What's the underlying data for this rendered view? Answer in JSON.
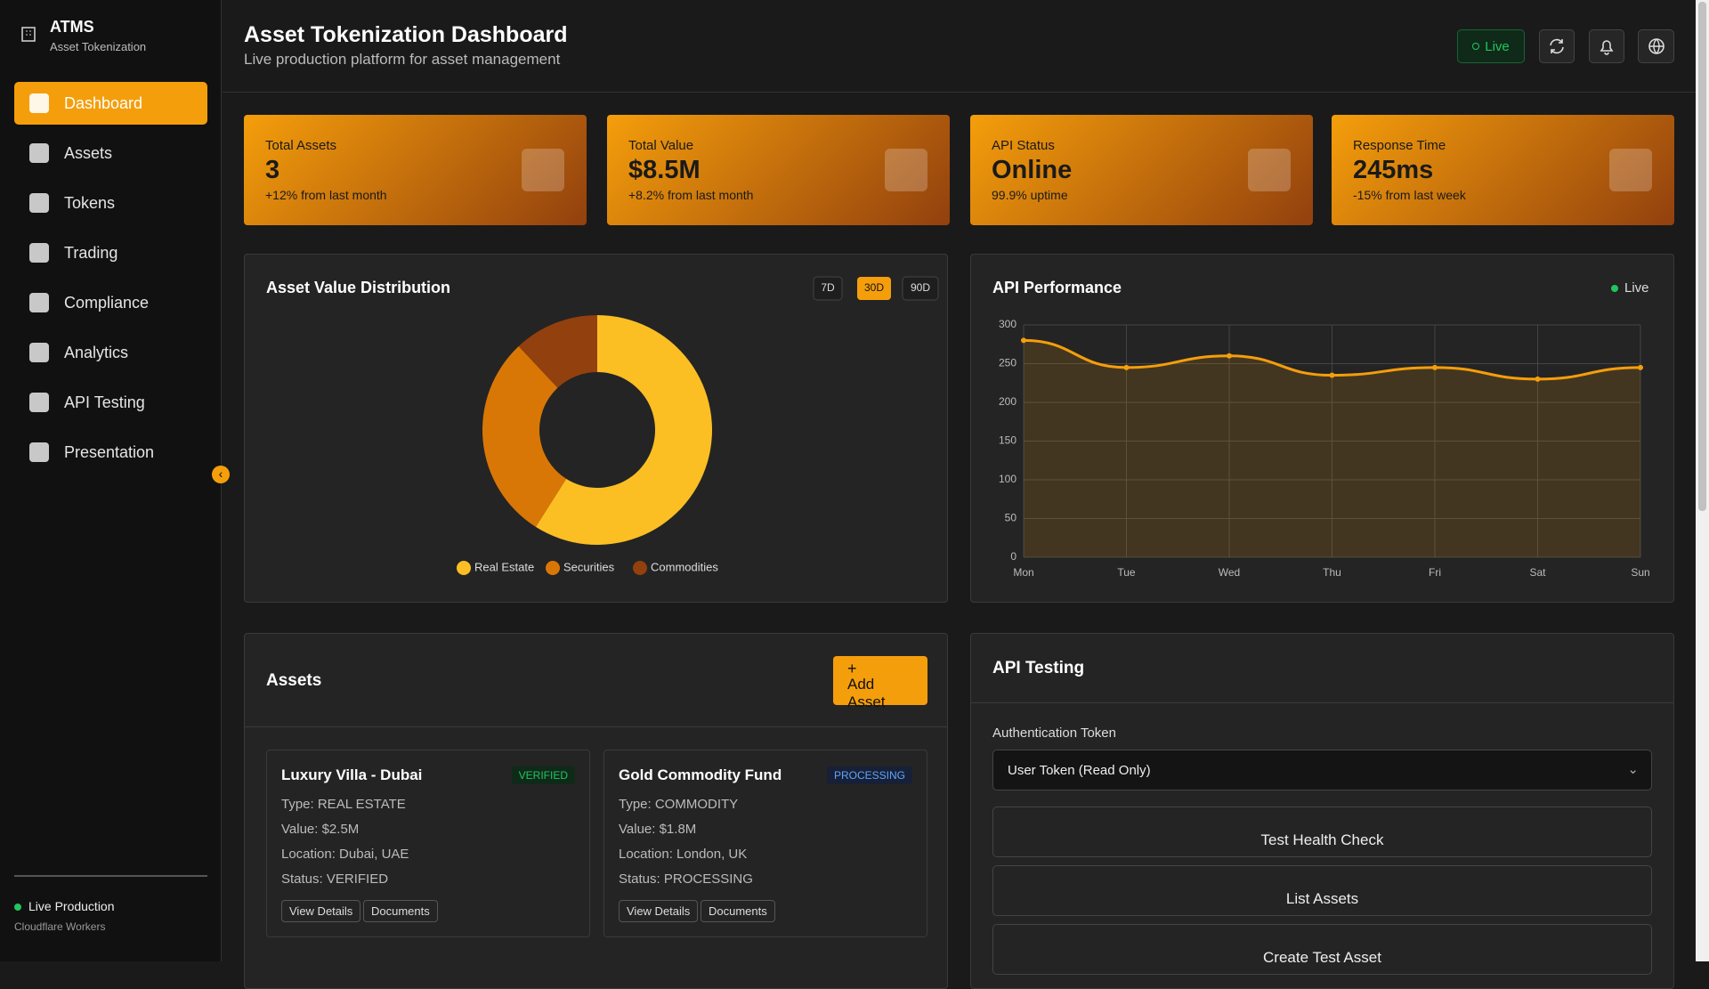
{
  "sidebar": {
    "brand": "ATMS",
    "tagline": "Asset Tokenization",
    "nav": [
      "Dashboard",
      "Assets",
      "Tokens",
      "Trading",
      "Compliance",
      "Analytics",
      "API Testing",
      "Presentation"
    ],
    "status": "Live Production",
    "status_sub": "Cloudflare Workers"
  },
  "header": {
    "title": "Asset Tokenization Dashboard",
    "subtitle": "Live production platform for asset management",
    "badge": "Live"
  },
  "stats": [
    {
      "label": "Total Assets",
      "value": "3",
      "note": "+12% from last month"
    },
    {
      "label": "Total Value",
      "value": "$8.5M",
      "note": "+8.2% from last month"
    },
    {
      "label": "API Status",
      "value": "Online",
      "note": "99.9% uptime"
    },
    {
      "label": "Response Time",
      "value": "245ms",
      "note": "-15% from last week"
    }
  ],
  "chart_data": [
    {
      "type": "pie",
      "title": "Asset Value Distribution",
      "ranges": [
        "7D",
        "30D",
        "90D"
      ],
      "categories": [
        "Real Estate",
        "Securities",
        "Commodities"
      ],
      "values": [
        59,
        29,
        12
      ],
      "colors": [
        "#fbbf24",
        "#d97706",
        "#92400e"
      ],
      "donut": true
    },
    {
      "type": "line",
      "title": "API Performance",
      "badge": "Live",
      "categories": [
        "Mon",
        "Tue",
        "Wed",
        "Thu",
        "Fri",
        "Sat",
        "Sun"
      ],
      "values": [
        280,
        245,
        260,
        235,
        245,
        230,
        245
      ],
      "color": "#f59e0b",
      "ylim": [
        0,
        300
      ],
      "yticks": [
        0,
        50,
        100,
        150,
        200,
        250,
        300
      ],
      "grid": true
    }
  ],
  "assets": {
    "title": "Assets",
    "add": "Add Asset",
    "cards": [
      {
        "name": "Luxury Villa - Dubai",
        "badge": "VERIFIED",
        "lines": [
          "Type: REAL ESTATE",
          "Value: $2.5M",
          "Location: Dubai, UAE",
          "Status: VERIFIED"
        ],
        "buttons": [
          "View Details",
          "Documents"
        ]
      },
      {
        "name": "Gold Commodity Fund",
        "badge": "PROCESSING",
        "lines": [
          "Type: COMMODITY",
          "Value: $1.8M",
          "Location: London, UK",
          "Status: PROCESSING"
        ],
        "buttons": [
          "View Details",
          "Documents"
        ]
      }
    ]
  },
  "api_testing": {
    "title": "API Testing",
    "auth_label": "Authentication Token",
    "token": "User Token (Read Only)",
    "actions": [
      "Test Health Check",
      "List Assets",
      "Create Test Asset"
    ]
  }
}
